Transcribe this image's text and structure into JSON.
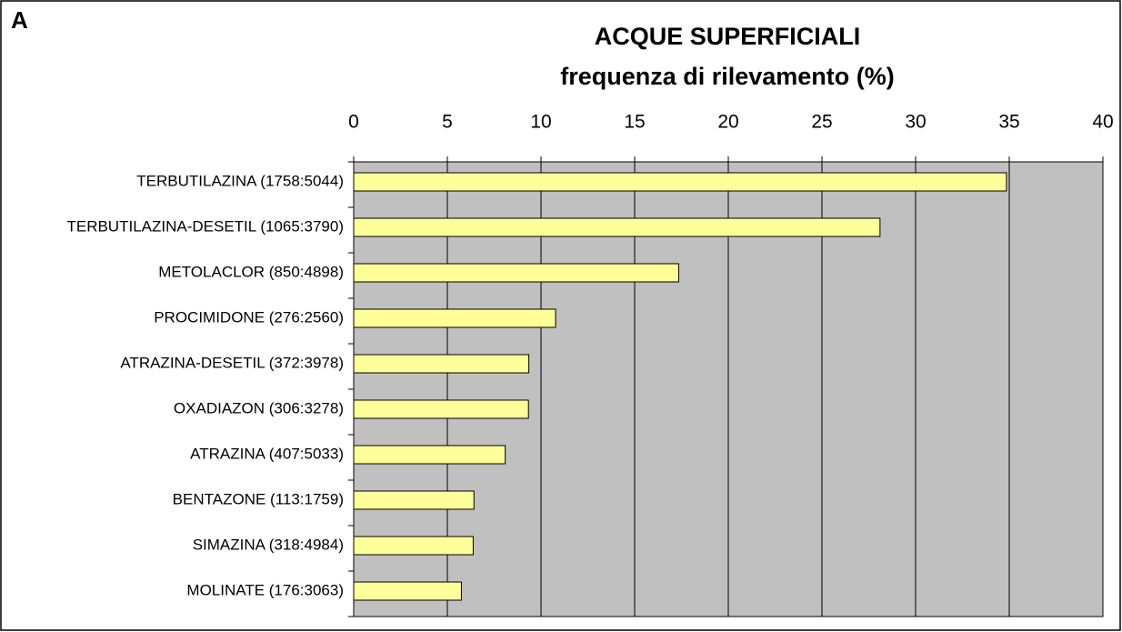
{
  "chart_data": {
    "type": "bar",
    "orientation": "horizontal",
    "panel_label": "A",
    "title": "ACQUE SUPERFICIALI",
    "subtitle": "frequenza di rilevamento (%)",
    "categories": [
      "TERBUTILAZINA (1758:5044)",
      "TERBUTILAZINA-DESETIL (1065:3790)",
      "METOLACLOR (850:4898)",
      "PROCIMIDONE (276:2560)",
      "ATRAZINA-DESETIL (372:3978)",
      "OXADIAZON (306:3278)",
      "ATRAZINA (407:5033)",
      "BENTAZONE (113:1759)",
      "SIMAZINA (318:4984)",
      "MOLINATE (176:3063)"
    ],
    "values": [
      34.85,
      28.1,
      17.35,
      10.78,
      9.35,
      9.33,
      8.09,
      6.42,
      6.38,
      5.75
    ],
    "color": "#ffff99",
    "plot_background": "#c0c0c0",
    "xlim": [
      0,
      40
    ],
    "xticks": [
      0,
      5,
      10,
      15,
      20,
      25,
      30,
      35,
      40
    ],
    "grid": true
  }
}
